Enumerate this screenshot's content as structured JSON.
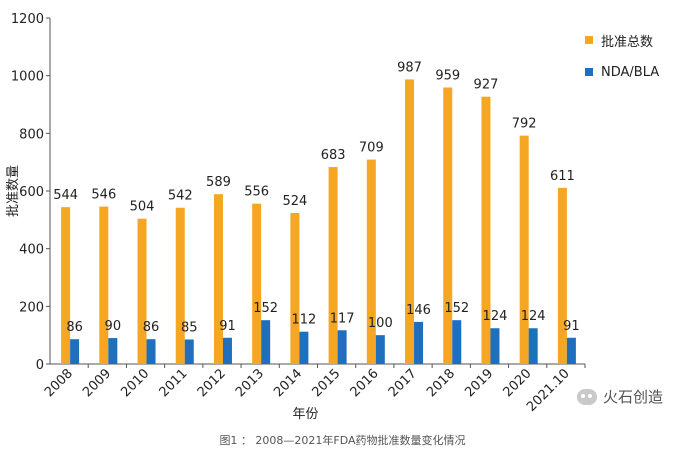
{
  "chart_data": {
    "type": "bar",
    "title": "",
    "xlabel": "年份",
    "ylabel": "批准数量",
    "ylim": [
      0,
      1200
    ],
    "yticks": [
      0,
      200,
      400,
      600,
      800,
      1000,
      1200
    ],
    "grid": false,
    "legend_position": "top-right",
    "categories": [
      "2008",
      "2009",
      "2010",
      "2011",
      "2012",
      "2013",
      "2014",
      "2015",
      "2016",
      "2017",
      "2018",
      "2019",
      "2020",
      "2021.10"
    ],
    "series": [
      {
        "name": "批准总数",
        "color": "#F5A623",
        "values": [
          544,
          546,
          504,
          542,
          589,
          556,
          524,
          683,
          709,
          987,
          959,
          927,
          792,
          611
        ]
      },
      {
        "name": "NDA/BLA",
        "color": "#1F6FBF",
        "values": [
          86,
          90,
          86,
          85,
          91,
          152,
          112,
          117,
          100,
          146,
          152,
          124,
          124,
          91
        ]
      }
    ]
  },
  "caption": "图1 ： 2008—2021年FDA药物批准数量变化情况",
  "watermark": {
    "text": "火石创造",
    "icon": "wechat-icon"
  }
}
